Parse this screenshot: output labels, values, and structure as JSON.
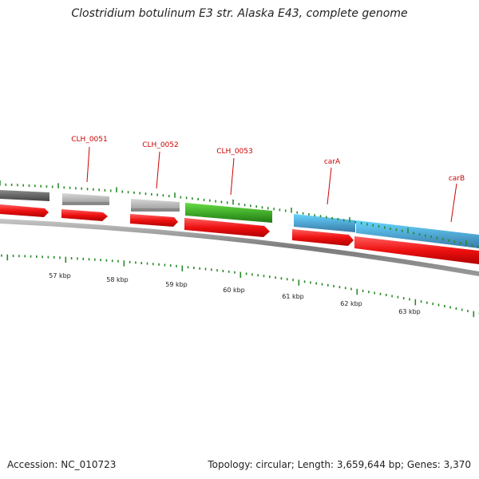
{
  "title": "Clostridium botulinum E3 str. Alaska E43, complete genome",
  "footer": {
    "accession": "Accession: NC_010723",
    "summary": "Topology: circular; Length: 3,659,644 bp; Genes: 3,370"
  },
  "genes": [
    {
      "label": "CLH_0051"
    },
    {
      "label": "CLH_0052"
    },
    {
      "label": "CLH_0053"
    },
    {
      "label": "carA"
    },
    {
      "label": "carB"
    }
  ],
  "scale": {
    "unit": "kbp",
    "labels": [
      "57 kbp",
      "58 kbp",
      "59 kbp",
      "60 kbp",
      "61 kbp",
      "62 kbp",
      "63 kbp"
    ]
  },
  "colors": {
    "label": "#cc0000",
    "cds": "#ee1111",
    "gray_gene": "#b5b5b5",
    "dark_gene": "#666666",
    "green_gene": "#33aa22",
    "blue_gene": "#22aadd",
    "tick": "#2a8a2a",
    "backbone": "#808080"
  }
}
